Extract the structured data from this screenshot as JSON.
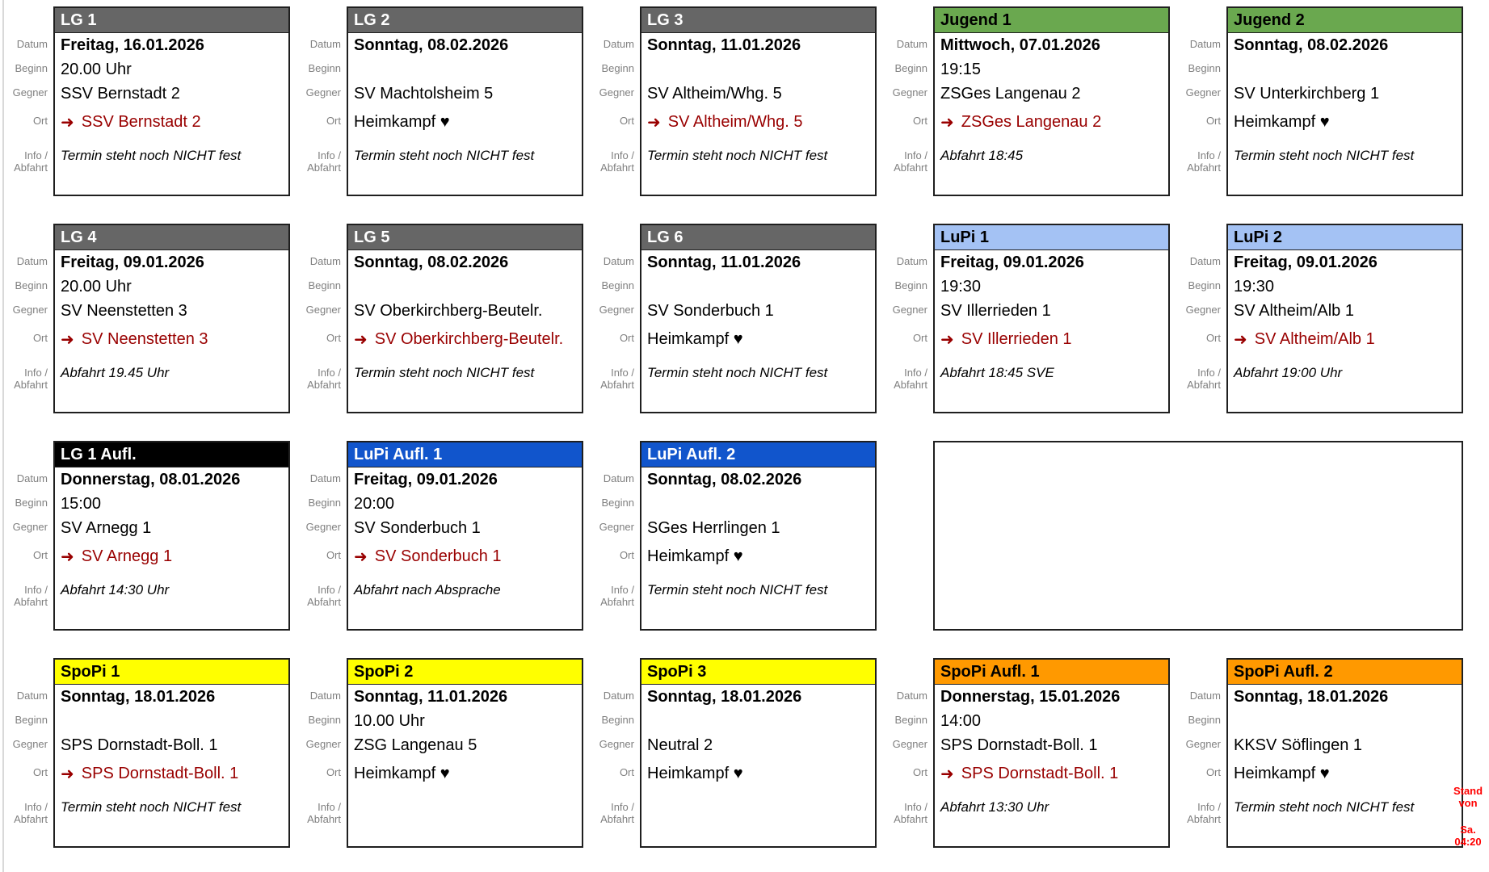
{
  "board": {
    "field_labels": {
      "datum": "Datum",
      "beginn": "Beginn",
      "gegner": "Gegner",
      "info_line1": "Info /",
      "info_line2": "Abfahrt",
      "ort": "Ort"
    },
    "away_arrow": "➜",
    "stand_note": {
      "line1": "Stand von",
      "line2": "Sa. 04:20"
    },
    "styles": {
      "gray": {
        "bg": "#666666",
        "fg": "#ffffff"
      },
      "green": {
        "bg": "#6aa84f",
        "fg": "#000000"
      },
      "lightblue": {
        "bg": "#a4c2f4",
        "fg": "#000000"
      },
      "blue": {
        "bg": "#1155cc",
        "fg": "#ffffff"
      },
      "black": {
        "bg": "#000000",
        "fg": "#ffffff"
      },
      "yellow": {
        "bg": "#ffff00",
        "fg": "#000000"
      },
      "orange": {
        "bg": "#ff9900",
        "fg": "#000000"
      }
    },
    "colors": {
      "away_link": "#990000",
      "stand_note": "#ff0000",
      "label_gray": "#808080"
    },
    "cards": [
      {
        "title": "LG 1",
        "style": "gray",
        "datum": "Freitag, 16.01.2026",
        "beginn": "20.00 Uhr",
        "gegner": "SSV Bernstadt 2",
        "ort": "SSV Bernstadt 2",
        "ort_mode": "away",
        "info": "Termin steht noch NICHT fest"
      },
      {
        "title": "LG 2",
        "style": "gray",
        "datum": "Sonntag, 08.02.2026",
        "beginn": "",
        "gegner": "SV Machtolsheim 5",
        "ort": "Heimkampf ♥",
        "ort_mode": "home",
        "info": "Termin steht noch NICHT fest"
      },
      {
        "title": "LG 3",
        "style": "gray",
        "datum": "Sonntag, 11.01.2026",
        "beginn": "",
        "gegner": "SV Altheim/Whg. 5",
        "ort": "SV Altheim/Whg. 5",
        "ort_mode": "away",
        "info": "Termin steht noch NICHT fest"
      },
      {
        "title": "Jugend 1",
        "style": "green",
        "datum": "Mittwoch, 07.01.2026",
        "beginn": "19:15",
        "gegner": "ZSGes Langenau 2",
        "ort": "ZSGes Langenau 2",
        "ort_mode": "away",
        "info": "Abfahrt 18:45"
      },
      {
        "title": "Jugend 2",
        "style": "green",
        "datum": "Sonntag, 08.02.2026",
        "beginn": "",
        "gegner": "SV Unterkirchberg 1",
        "ort": "Heimkampf ♥",
        "ort_mode": "home",
        "info": "Termin steht noch NICHT fest"
      },
      {
        "title": "LG 4",
        "style": "gray",
        "datum": "Freitag, 09.01.2026",
        "beginn": "20.00 Uhr",
        "gegner": "SV Neenstetten 3",
        "ort": "SV Neenstetten 3",
        "ort_mode": "away",
        "info": "Abfahrt 19.45 Uhr"
      },
      {
        "title": "LG 5",
        "style": "gray",
        "datum": "Sonntag, 08.02.2026",
        "beginn": "",
        "gegner": "SV Oberkirchberg-Beutelr.",
        "ort": "SV Oberkirchberg-Beutelr.",
        "ort_mode": "away",
        "info": "Termin steht noch NICHT fest"
      },
      {
        "title": "LG 6",
        "style": "gray",
        "datum": "Sonntag, 11.01.2026",
        "beginn": "",
        "gegner": "SV Sonderbuch 1",
        "ort": "Heimkampf ♥",
        "ort_mode": "home",
        "info": "Termin steht noch NICHT fest"
      },
      {
        "title": "LuPi 1",
        "style": "lightblue",
        "datum": "Freitag, 09.01.2026",
        "beginn": "19:30",
        "gegner": "SV Illerrieden 1",
        "ort": "SV Illerrieden 1",
        "ort_mode": "away",
        "info": "Abfahrt 18:45 SVE"
      },
      {
        "title": "LuPi 2",
        "style": "lightblue",
        "datum": "Freitag, 09.01.2026",
        "beginn": "19:30",
        "gegner": "SV Altheim/Alb 1",
        "ort": "SV Altheim/Alb 1",
        "ort_mode": "away",
        "info": "Abfahrt 19:00 Uhr"
      },
      {
        "title": "LG 1 Aufl.",
        "style": "black",
        "datum": "Donnerstag, 08.01.2026",
        "beginn": "15:00",
        "gegner": "SV Arnegg 1",
        "ort": "SV Arnegg 1",
        "ort_mode": "away",
        "info": "Abfahrt 14:30 Uhr"
      },
      {
        "title": "LuPi Aufl. 1",
        "style": "blue",
        "datum": "Freitag, 09.01.2026",
        "beginn": "20:00",
        "gegner": "SV Sonderbuch 1",
        "ort": "SV Sonderbuch 1",
        "ort_mode": "away",
        "info": "Abfahrt nach Absprache"
      },
      {
        "title": "LuPi Aufl. 2",
        "style": "blue",
        "datum": "Sonntag, 08.02.2026",
        "beginn": "",
        "gegner": "SGes Herrlingen 1",
        "ort": "Heimkampf ♥",
        "ort_mode": "home",
        "info": "Termin steht noch NICHT fest"
      },
      {
        "empty": true,
        "span": 2
      },
      {
        "title": "SpoPi 1",
        "style": "yellow",
        "datum": "Sonntag, 18.01.2026",
        "beginn": "",
        "gegner": "SPS Dornstadt-Boll. 1",
        "ort": "SPS Dornstadt-Boll. 1",
        "ort_mode": "away",
        "info": "Termin steht noch NICHT fest"
      },
      {
        "title": "SpoPi 2",
        "style": "yellow",
        "datum": "Sonntag, 11.01.2026",
        "beginn": "10.00 Uhr",
        "gegner": "ZSG Langenau 5",
        "ort": "Heimkampf ♥",
        "ort_mode": "home",
        "info": ""
      },
      {
        "title": "SpoPi 3",
        "style": "yellow",
        "datum": "Sonntag, 18.01.2026",
        "beginn": "",
        "gegner": "Neutral 2",
        "ort": "Heimkampf ♥",
        "ort_mode": "home",
        "info": ""
      },
      {
        "title": "SpoPi Aufl. 1",
        "style": "orange",
        "datum": "Donnerstag, 15.01.2026",
        "beginn": "14:00",
        "gegner": "SPS Dornstadt-Boll. 1",
        "ort": "SPS Dornstadt-Boll. 1",
        "ort_mode": "away",
        "info": "Abfahrt 13:30 Uhr"
      },
      {
        "title": "SpoPi Aufl. 2",
        "style": "orange",
        "datum": "Sonntag, 18.01.2026",
        "beginn": "",
        "gegner": "KKSV Söflingen 1",
        "ort": "Heimkampf ♥",
        "ort_mode": "home",
        "info": "Termin steht noch NICHT fest"
      }
    ]
  }
}
